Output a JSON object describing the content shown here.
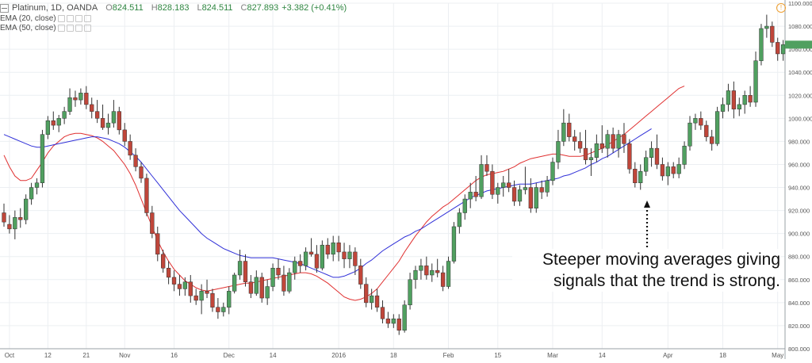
{
  "legend": {
    "symbol": "Platinum, 1D, OANDA",
    "open_label": "O",
    "open": "824.511",
    "high_label": "H",
    "high": "828.183",
    "low_label": "L",
    "low": "824.511",
    "close_label": "C",
    "close": "827.893",
    "change": "+3.382 (+0.41%)",
    "ema20": "EMA (20, close)",
    "ema50": "EMA (50, close)"
  },
  "annotation": {
    "line1": "Steeper moving averages giving",
    "line2": "signals that the trend is strong."
  },
  "colors": {
    "up": "#50a060",
    "down": "#c0463a",
    "ema20": "#e03030",
    "ema50": "#3030d8",
    "grid": "#eceff2",
    "axis_text": "#555555",
    "warning": "#f0a030"
  },
  "chart_data": {
    "type": "candlestick",
    "title": "Platinum, 1D, OANDA",
    "ylim": [
      800,
      1100
    ],
    "y_ticks": [
      "800.000",
      "820.000",
      "840.000",
      "860.000",
      "880.000",
      "900.000",
      "920.000",
      "940.000",
      "960.000",
      "980.000",
      "1000.000",
      "1020.000",
      "1040.000",
      "1060.000",
      "1080.000",
      "1100.000"
    ],
    "x_ticks": [
      {
        "label": "Oct",
        "index": 1
      },
      {
        "label": "12",
        "index": 8
      },
      {
        "label": "21",
        "index": 15
      },
      {
        "label": "Nov",
        "index": 22
      },
      {
        "label": "16",
        "index": 31
      },
      {
        "label": "Dec",
        "index": 41
      },
      {
        "label": "14",
        "index": 49
      },
      {
        "label": "2016",
        "index": 61
      },
      {
        "label": "18",
        "index": 71
      },
      {
        "label": "Feb",
        "index": 81
      },
      {
        "label": "15",
        "index": 90
      },
      {
        "label": "Mar",
        "index": 100
      },
      {
        "label": "14",
        "index": 109
      },
      {
        "label": "Apr",
        "index": 121
      },
      {
        "label": "18",
        "index": 131
      },
      {
        "label": "May",
        "index": 141
      }
    ],
    "grid": true,
    "legend_position": "top-left",
    "candles": [
      {
        "o": 918,
        "h": 926,
        "l": 906,
        "c": 910
      },
      {
        "o": 908,
        "h": 916,
        "l": 900,
        "c": 904
      },
      {
        "o": 904,
        "h": 920,
        "l": 895,
        "c": 914
      },
      {
        "o": 914,
        "h": 922,
        "l": 905,
        "c": 912
      },
      {
        "o": 912,
        "h": 934,
        "l": 908,
        "c": 930
      },
      {
        "o": 930,
        "h": 944,
        "l": 925,
        "c": 940
      },
      {
        "o": 940,
        "h": 948,
        "l": 934,
        "c": 944
      },
      {
        "o": 944,
        "h": 990,
        "l": 940,
        "c": 986
      },
      {
        "o": 986,
        "h": 1002,
        "l": 982,
        "c": 998
      },
      {
        "o": 998,
        "h": 1006,
        "l": 990,
        "c": 994
      },
      {
        "o": 994,
        "h": 1003,
        "l": 988,
        "c": 1000
      },
      {
        "o": 1000,
        "h": 1010,
        "l": 995,
        "c": 1006
      },
      {
        "o": 1006,
        "h": 1026,
        "l": 1003,
        "c": 1018
      },
      {
        "o": 1018,
        "h": 1024,
        "l": 1010,
        "c": 1016
      },
      {
        "o": 1016,
        "h": 1026,
        "l": 1012,
        "c": 1022
      },
      {
        "o": 1022,
        "h": 1028,
        "l": 1008,
        "c": 1012
      },
      {
        "o": 1012,
        "h": 1018,
        "l": 1000,
        "c": 1006
      },
      {
        "o": 1006,
        "h": 1016,
        "l": 996,
        "c": 1000
      },
      {
        "o": 1000,
        "h": 1012,
        "l": 990,
        "c": 992
      },
      {
        "o": 992,
        "h": 1004,
        "l": 986,
        "c": 996
      },
      {
        "o": 996,
        "h": 1016,
        "l": 992,
        "c": 1006
      },
      {
        "o": 1006,
        "h": 1010,
        "l": 986,
        "c": 990
      },
      {
        "o": 990,
        "h": 996,
        "l": 976,
        "c": 980
      },
      {
        "o": 980,
        "h": 986,
        "l": 964,
        "c": 968
      },
      {
        "o": 968,
        "h": 974,
        "l": 954,
        "c": 958
      },
      {
        "o": 958,
        "h": 962,
        "l": 944,
        "c": 948
      },
      {
        "o": 948,
        "h": 952,
        "l": 915,
        "c": 918
      },
      {
        "o": 918,
        "h": 924,
        "l": 896,
        "c": 900
      },
      {
        "o": 900,
        "h": 906,
        "l": 876,
        "c": 882
      },
      {
        "o": 882,
        "h": 886,
        "l": 866,
        "c": 870
      },
      {
        "o": 870,
        "h": 876,
        "l": 856,
        "c": 862
      },
      {
        "o": 862,
        "h": 868,
        "l": 850,
        "c": 856
      },
      {
        "o": 856,
        "h": 864,
        "l": 846,
        "c": 852
      },
      {
        "o": 852,
        "h": 862,
        "l": 846,
        "c": 858
      },
      {
        "o": 858,
        "h": 864,
        "l": 840,
        "c": 846
      },
      {
        "o": 846,
        "h": 852,
        "l": 838,
        "c": 842
      },
      {
        "o": 842,
        "h": 856,
        "l": 830,
        "c": 850
      },
      {
        "o": 850,
        "h": 860,
        "l": 844,
        "c": 848
      },
      {
        "o": 848,
        "h": 852,
        "l": 832,
        "c": 836
      },
      {
        "o": 836,
        "h": 844,
        "l": 826,
        "c": 832
      },
      {
        "o": 832,
        "h": 840,
        "l": 828,
        "c": 836
      },
      {
        "o": 836,
        "h": 854,
        "l": 830,
        "c": 850
      },
      {
        "o": 850,
        "h": 866,
        "l": 848,
        "c": 864
      },
      {
        "o": 864,
        "h": 886,
        "l": 860,
        "c": 876
      },
      {
        "o": 876,
        "h": 882,
        "l": 854,
        "c": 858
      },
      {
        "o": 858,
        "h": 864,
        "l": 844,
        "c": 848
      },
      {
        "o": 848,
        "h": 868,
        "l": 846,
        "c": 862
      },
      {
        "o": 862,
        "h": 866,
        "l": 840,
        "c": 844
      },
      {
        "o": 844,
        "h": 860,
        "l": 838,
        "c": 854
      },
      {
        "o": 854,
        "h": 874,
        "l": 850,
        "c": 870
      },
      {
        "o": 870,
        "h": 878,
        "l": 860,
        "c": 864
      },
      {
        "o": 864,
        "h": 872,
        "l": 846,
        "c": 850
      },
      {
        "o": 850,
        "h": 870,
        "l": 848,
        "c": 866
      },
      {
        "o": 866,
        "h": 880,
        "l": 860,
        "c": 876
      },
      {
        "o": 876,
        "h": 882,
        "l": 866,
        "c": 872
      },
      {
        "o": 872,
        "h": 888,
        "l": 868,
        "c": 884
      },
      {
        "o": 884,
        "h": 896,
        "l": 880,
        "c": 882
      },
      {
        "o": 882,
        "h": 890,
        "l": 866,
        "c": 870
      },
      {
        "o": 870,
        "h": 894,
        "l": 868,
        "c": 890
      },
      {
        "o": 890,
        "h": 896,
        "l": 878,
        "c": 882
      },
      {
        "o": 882,
        "h": 898,
        "l": 876,
        "c": 892
      },
      {
        "o": 892,
        "h": 898,
        "l": 876,
        "c": 884
      },
      {
        "o": 884,
        "h": 892,
        "l": 870,
        "c": 878
      },
      {
        "o": 878,
        "h": 890,
        "l": 870,
        "c": 884
      },
      {
        "o": 884,
        "h": 888,
        "l": 864,
        "c": 872
      },
      {
        "o": 872,
        "h": 878,
        "l": 852,
        "c": 856
      },
      {
        "o": 856,
        "h": 862,
        "l": 836,
        "c": 840
      },
      {
        "o": 840,
        "h": 852,
        "l": 834,
        "c": 846
      },
      {
        "o": 846,
        "h": 852,
        "l": 832,
        "c": 836
      },
      {
        "o": 836,
        "h": 842,
        "l": 822,
        "c": 826
      },
      {
        "o": 826,
        "h": 832,
        "l": 818,
        "c": 822
      },
      {
        "o": 822,
        "h": 830,
        "l": 818,
        "c": 826
      },
      {
        "o": 826,
        "h": 830,
        "l": 812,
        "c": 816
      },
      {
        "o": 816,
        "h": 842,
        "l": 814,
        "c": 838
      },
      {
        "o": 838,
        "h": 866,
        "l": 834,
        "c": 860
      },
      {
        "o": 860,
        "h": 872,
        "l": 852,
        "c": 868
      },
      {
        "o": 868,
        "h": 878,
        "l": 860,
        "c": 872
      },
      {
        "o": 872,
        "h": 880,
        "l": 860,
        "c": 864
      },
      {
        "o": 864,
        "h": 874,
        "l": 858,
        "c": 868
      },
      {
        "o": 868,
        "h": 878,
        "l": 862,
        "c": 866
      },
      {
        "o": 866,
        "h": 872,
        "l": 850,
        "c": 854
      },
      {
        "o": 854,
        "h": 880,
        "l": 852,
        "c": 876
      },
      {
        "o": 876,
        "h": 910,
        "l": 874,
        "c": 906
      },
      {
        "o": 906,
        "h": 922,
        "l": 900,
        "c": 918
      },
      {
        "o": 918,
        "h": 934,
        "l": 912,
        "c": 930
      },
      {
        "o": 930,
        "h": 944,
        "l": 922,
        "c": 936
      },
      {
        "o": 936,
        "h": 950,
        "l": 928,
        "c": 932
      },
      {
        "o": 932,
        "h": 968,
        "l": 930,
        "c": 960
      },
      {
        "o": 960,
        "h": 968,
        "l": 950,
        "c": 954
      },
      {
        "o": 954,
        "h": 960,
        "l": 930,
        "c": 934
      },
      {
        "o": 934,
        "h": 944,
        "l": 926,
        "c": 940
      },
      {
        "o": 940,
        "h": 950,
        "l": 932,
        "c": 944
      },
      {
        "o": 944,
        "h": 956,
        "l": 936,
        "c": 940
      },
      {
        "o": 940,
        "h": 946,
        "l": 924,
        "c": 928
      },
      {
        "o": 928,
        "h": 942,
        "l": 924,
        "c": 938
      },
      {
        "o": 938,
        "h": 958,
        "l": 934,
        "c": 940
      },
      {
        "o": 940,
        "h": 948,
        "l": 918,
        "c": 922
      },
      {
        "o": 922,
        "h": 944,
        "l": 918,
        "c": 940
      },
      {
        "o": 940,
        "h": 946,
        "l": 930,
        "c": 936
      },
      {
        "o": 936,
        "h": 950,
        "l": 932,
        "c": 946
      },
      {
        "o": 946,
        "h": 966,
        "l": 942,
        "c": 962
      },
      {
        "o": 962,
        "h": 990,
        "l": 956,
        "c": 980
      },
      {
        "o": 980,
        "h": 1008,
        "l": 976,
        "c": 996
      },
      {
        "o": 996,
        "h": 1004,
        "l": 980,
        "c": 984
      },
      {
        "o": 984,
        "h": 990,
        "l": 972,
        "c": 980
      },
      {
        "o": 980,
        "h": 988,
        "l": 970,
        "c": 974
      },
      {
        "o": 974,
        "h": 990,
        "l": 960,
        "c": 964
      },
      {
        "o": 964,
        "h": 974,
        "l": 950,
        "c": 966
      },
      {
        "o": 966,
        "h": 986,
        "l": 962,
        "c": 978
      },
      {
        "o": 978,
        "h": 994,
        "l": 970,
        "c": 974
      },
      {
        "o": 974,
        "h": 990,
        "l": 966,
        "c": 986
      },
      {
        "o": 986,
        "h": 992,
        "l": 970,
        "c": 974
      },
      {
        "o": 974,
        "h": 990,
        "l": 966,
        "c": 986
      },
      {
        "o": 986,
        "h": 996,
        "l": 970,
        "c": 978
      },
      {
        "o": 978,
        "h": 982,
        "l": 952,
        "c": 956
      },
      {
        "o": 956,
        "h": 962,
        "l": 940,
        "c": 944
      },
      {
        "o": 944,
        "h": 960,
        "l": 938,
        "c": 954
      },
      {
        "o": 954,
        "h": 972,
        "l": 950,
        "c": 966
      },
      {
        "o": 966,
        "h": 980,
        "l": 958,
        "c": 974
      },
      {
        "o": 974,
        "h": 986,
        "l": 956,
        "c": 960
      },
      {
        "o": 960,
        "h": 966,
        "l": 946,
        "c": 950
      },
      {
        "o": 950,
        "h": 962,
        "l": 942,
        "c": 958
      },
      {
        "o": 958,
        "h": 962,
        "l": 948,
        "c": 952
      },
      {
        "o": 952,
        "h": 966,
        "l": 948,
        "c": 960
      },
      {
        "o": 960,
        "h": 980,
        "l": 956,
        "c": 976
      },
      {
        "o": 976,
        "h": 1002,
        "l": 972,
        "c": 996
      },
      {
        "o": 996,
        "h": 1004,
        "l": 990,
        "c": 1000
      },
      {
        "o": 1000,
        "h": 1006,
        "l": 990,
        "c": 994
      },
      {
        "o": 994,
        "h": 998,
        "l": 980,
        "c": 984
      },
      {
        "o": 984,
        "h": 990,
        "l": 972,
        "c": 978
      },
      {
        "o": 978,
        "h": 1010,
        "l": 976,
        "c": 1006
      },
      {
        "o": 1006,
        "h": 1018,
        "l": 1000,
        "c": 1012
      },
      {
        "o": 1012,
        "h": 1030,
        "l": 1006,
        "c": 1024
      },
      {
        "o": 1024,
        "h": 1032,
        "l": 1000,
        "c": 1008
      },
      {
        "o": 1008,
        "h": 1018,
        "l": 1002,
        "c": 1012
      },
      {
        "o": 1012,
        "h": 1024,
        "l": 1004,
        "c": 1020
      },
      {
        "o": 1020,
        "h": 1028,
        "l": 1010,
        "c": 1014
      },
      {
        "o": 1014,
        "h": 1058,
        "l": 1010,
        "c": 1050
      },
      {
        "o": 1050,
        "h": 1082,
        "l": 1046,
        "c": 1078
      },
      {
        "o": 1078,
        "h": 1090,
        "l": 1070,
        "c": 1080
      },
      {
        "o": 1080,
        "h": 1084,
        "l": 1062,
        "c": 1066
      },
      {
        "o": 1066,
        "h": 1070,
        "l": 1050,
        "c": 1056
      },
      {
        "o": 1056,
        "h": 1068,
        "l": 1050,
        "c": 1064
      }
    ],
    "series": [
      {
        "name": "EMA (20, close)",
        "values": [
          968,
          958,
          950,
          946,
          946,
          948,
          955,
          962,
          970,
          976,
          980,
          984,
          986,
          987,
          987,
          986,
          985,
          983,
          980,
          976,
          972,
          966,
          960,
          952,
          942,
          930,
          918,
          906,
          894,
          884,
          876,
          869,
          864,
          859,
          856,
          853,
          851,
          850,
          851,
          852,
          853,
          854,
          855,
          856,
          857,
          857,
          858,
          859,
          860,
          861,
          862,
          863,
          864,
          865,
          866,
          866,
          865,
          863,
          860,
          857,
          853,
          849,
          845,
          843,
          842,
          843,
          845,
          848,
          852,
          858,
          864,
          870,
          876,
          884,
          891,
          898,
          904,
          910,
          915,
          919,
          923,
          926,
          930,
          934,
          938,
          942,
          946,
          949,
          951,
          952,
          953,
          954,
          956,
          958,
          961,
          963,
          965,
          966,
          967,
          968,
          969,
          969,
          968,
          967,
          967,
          967,
          968,
          970,
          972,
          974,
          977,
          980,
          983,
          986,
          990,
          994,
          998,
          1002,
          1006,
          1010,
          1014,
          1018,
          1022,
          1026,
          1028
        ]
      },
      {
        "name": "EMA (50, close)",
        "values": [
          986,
          984,
          982,
          980,
          978,
          976,
          975,
          975,
          976,
          977,
          978,
          979,
          980,
          981,
          982,
          983,
          984,
          984,
          983,
          982,
          980,
          978,
          975,
          971,
          967,
          962,
          956,
          950,
          944,
          938,
          932,
          926,
          920,
          915,
          910,
          905,
          900,
          896,
          893,
          890,
          887,
          885,
          883,
          881,
          880,
          879,
          879,
          879,
          879,
          879,
          878,
          877,
          876,
          875,
          874,
          872,
          870,
          868,
          866,
          864,
          862,
          862,
          863,
          865,
          867,
          870,
          874,
          877,
          881,
          885,
          888,
          891,
          894,
          897,
          899,
          902,
          904,
          907,
          910,
          913,
          916,
          919,
          922,
          925,
          928,
          931,
          933,
          935,
          937,
          938,
          939,
          940,
          941,
          942,
          943,
          943,
          943,
          944,
          945,
          946,
          947,
          948,
          950,
          951,
          953,
          955,
          957,
          960,
          962,
          965,
          967,
          970,
          973,
          976,
          979,
          982,
          985,
          988,
          991
        ]
      }
    ]
  }
}
